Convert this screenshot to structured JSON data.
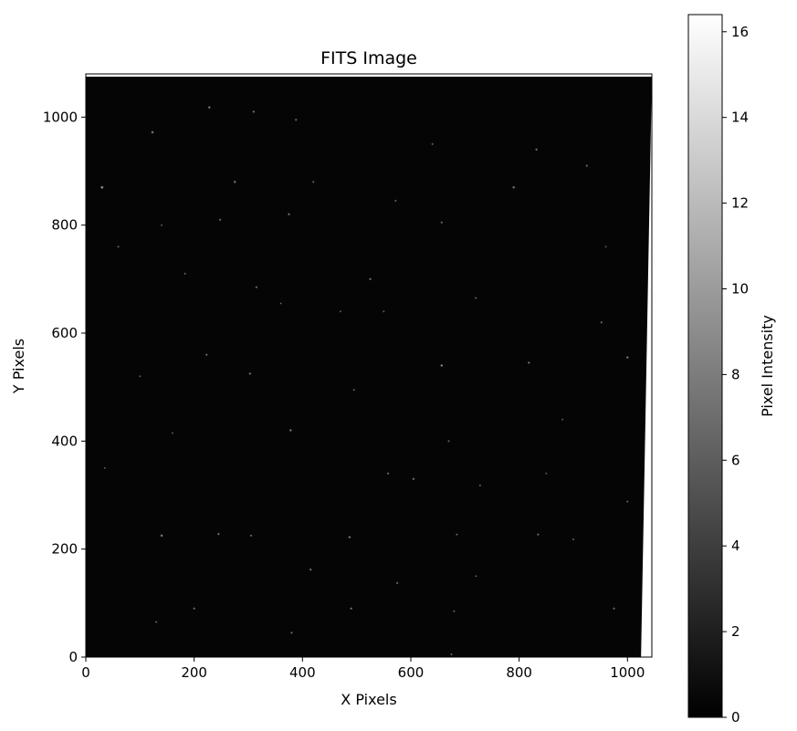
{
  "chart_data": {
    "type": "heatmap",
    "title": "FITS Image",
    "xlabel": "X Pixels",
    "ylabel": "Y Pixels",
    "xlim": [
      0,
      1045
    ],
    "ylim": [
      0,
      1080
    ],
    "xticks": [
      0,
      200,
      400,
      600,
      800,
      1000
    ],
    "yticks": [
      0,
      200,
      400,
      600,
      800,
      1000
    ],
    "colormap": "gray",
    "colorbar": {
      "label": "Pixel Intensity",
      "range": [
        0,
        16.4
      ],
      "ticks": [
        0,
        2,
        4,
        6,
        8,
        10,
        12,
        14,
        16
      ]
    },
    "image_region": {
      "corners": [
        [
          0,
          1075
        ],
        [
          1045,
          1075
        ],
        [
          1025,
          0
        ],
        [
          0,
          0
        ]
      ],
      "background_level": 0.2,
      "background_color": "#050505"
    },
    "stars": [
      [
        30,
        870,
        12
      ],
      [
        123,
        972,
        10
      ],
      [
        228,
        1018,
        9
      ],
      [
        310,
        1010,
        8
      ],
      [
        388,
        995,
        7
      ],
      [
        275,
        880,
        9
      ],
      [
        248,
        810,
        7
      ],
      [
        375,
        820,
        8
      ],
      [
        572,
        845,
        6
      ],
      [
        657,
        805,
        7
      ],
      [
        790,
        870,
        9
      ],
      [
        832,
        940,
        8
      ],
      [
        925,
        910,
        7
      ],
      [
        640,
        950,
        6
      ],
      [
        183,
        710,
        6
      ],
      [
        315,
        685,
        7
      ],
      [
        360,
        655,
        5
      ],
      [
        525,
        700,
        8
      ],
      [
        720,
        665,
        6
      ],
      [
        470,
        640,
        5
      ],
      [
        223,
        560,
        7
      ],
      [
        303,
        525,
        8
      ],
      [
        657,
        540,
        10
      ],
      [
        818,
        545,
        8
      ],
      [
        952,
        620,
        7
      ],
      [
        1000,
        555,
        9
      ],
      [
        378,
        420,
        9
      ],
      [
        495,
        495,
        6
      ],
      [
        670,
        400,
        6
      ],
      [
        558,
        340,
        7
      ],
      [
        605,
        330,
        8
      ],
      [
        728,
        318,
        6
      ],
      [
        850,
        340,
        5
      ],
      [
        1000,
        288,
        6
      ],
      [
        140,
        225,
        10
      ],
      [
        245,
        228,
        8
      ],
      [
        305,
        225,
        7
      ],
      [
        487,
        222,
        9
      ],
      [
        685,
        227,
        6
      ],
      [
        835,
        227,
        7
      ],
      [
        900,
        218,
        6
      ],
      [
        415,
        162,
        8
      ],
      [
        575,
        137,
        7
      ],
      [
        200,
        90,
        7
      ],
      [
        490,
        90,
        8
      ],
      [
        680,
        85,
        6
      ],
      [
        975,
        90,
        7
      ],
      [
        130,
        65,
        6
      ],
      [
        380,
        45,
        7
      ],
      [
        675,
        5,
        6
      ],
      [
        35,
        350,
        5
      ],
      [
        160,
        415,
        5
      ],
      [
        100,
        520,
        5
      ],
      [
        960,
        760,
        5
      ],
      [
        880,
        440,
        5
      ],
      [
        60,
        760,
        6
      ],
      [
        140,
        800,
        5
      ],
      [
        720,
        150,
        5
      ],
      [
        550,
        640,
        5
      ],
      [
        420,
        880,
        6
      ]
    ]
  }
}
